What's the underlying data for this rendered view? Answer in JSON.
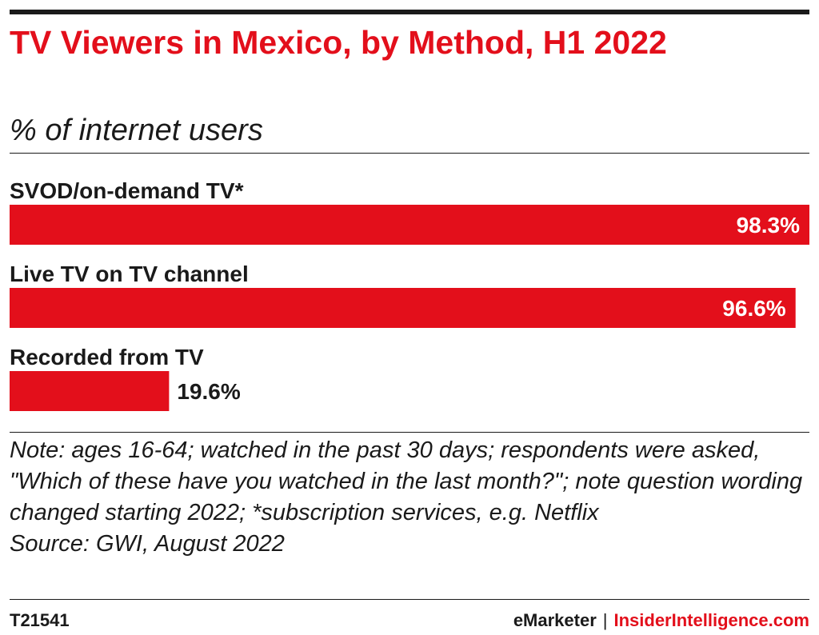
{
  "title": "TV Viewers in Mexico, by Method, H1 2022",
  "subtitle": "% of internet users",
  "chart_data": {
    "type": "bar",
    "orientation": "horizontal",
    "categories": [
      "SVOD/on-demand TV*",
      "Live TV on TV channel",
      "Recorded from TV"
    ],
    "values": [
      98.3,
      96.6,
      19.6
    ],
    "value_labels": [
      "98.3%",
      "96.6%",
      "19.6%"
    ],
    "xlim": [
      0,
      98.3
    ],
    "grid": false,
    "bar_color": "#e30f1b"
  },
  "note": {
    "prefix": "Note:",
    "text": " ages 16-64; watched in the past 30 days; respondents were asked, \"Which of these have you watched in the last month?\"; note question wording changed starting 2022; *subscription services, e.g. Netflix",
    "source": "Source: GWI, August 2022"
  },
  "footer": {
    "chart_id": "T21541",
    "brand_primary": "eMarketer",
    "separator": "|",
    "brand_secondary": "InsiderIntelligence.com"
  },
  "colors": {
    "accent": "#e30f1b",
    "text": "#1a1a1a"
  }
}
